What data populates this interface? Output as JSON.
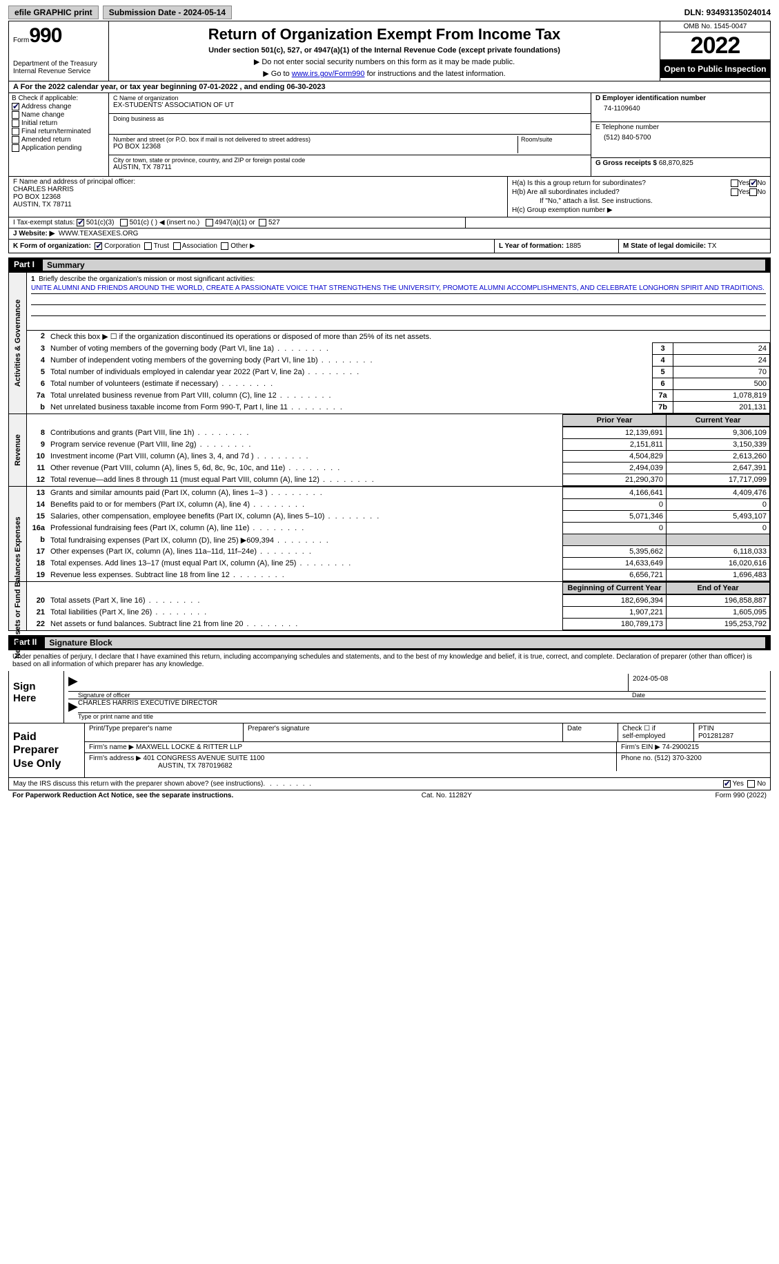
{
  "topbar": {
    "efile": "efile GRAPHIC print",
    "submission_label": "Submission Date - 2024-05-14",
    "dln": "DLN: 93493135024014"
  },
  "header": {
    "form_label": "Form",
    "form_number": "990",
    "dept": "Department of the Treasury\nInternal Revenue Service",
    "title": "Return of Organization Exempt From Income Tax",
    "subtitle": "Under section 501(c), 527, or 4947(a)(1) of the Internal Revenue Code (except private foundations)",
    "instr1": "▶ Do not enter social security numbers on this form as it may be made public.",
    "instr2_pre": "▶ Go to ",
    "instr2_link": "www.irs.gov/Form990",
    "instr2_post": " for instructions and the latest information.",
    "omb": "OMB No. 1545-0047",
    "year": "2022",
    "open": "Open to Public Inspection"
  },
  "period": {
    "label_a": "A For the 2022 calendar year, or tax year beginning ",
    "begin": "07-01-2022",
    "mid": "   , and ending ",
    "end": "06-30-2023"
  },
  "boxB": {
    "label": "B Check if applicable:",
    "items": [
      "Address change",
      "Name change",
      "Initial return",
      "Final return/terminated",
      "Amended return",
      "Application pending"
    ],
    "checked": [
      true,
      false,
      false,
      false,
      false,
      false
    ]
  },
  "boxC": {
    "name_label": "C Name of organization",
    "name": "EX-STUDENTS' ASSOCIATION OF UT",
    "dba_label": "Doing business as",
    "dba": "",
    "addr_label": "Number and street (or P.O. box if mail is not delivered to street address)",
    "room_label": "Room/suite",
    "addr": "PO BOX 12368",
    "city_label": "City or town, state or province, country, and ZIP or foreign postal code",
    "city": "AUSTIN, TX  78711"
  },
  "boxD": {
    "label": "D Employer identification number",
    "val": "74-1109640"
  },
  "boxE": {
    "label": "E Telephone number",
    "val": "(512) 840-5700"
  },
  "boxG": {
    "label": "G Gross receipts $",
    "val": "68,870,825"
  },
  "boxF": {
    "label": "F Name and address of principal officer:",
    "name": "CHARLES HARRIS",
    "addr": "PO BOX 12368",
    "city": "AUSTIN, TX  78711"
  },
  "boxH": {
    "ha": "H(a)  Is this a group return for subordinates?",
    "hb": "H(b)  Are all subordinates included?",
    "hb_note": "If \"No,\" attach a list. See instructions.",
    "hc": "H(c)  Group exemption number ▶",
    "yes": "Yes",
    "no": "No"
  },
  "boxI": {
    "label": "I   Tax-exempt status:",
    "opts": [
      "501(c)(3)",
      "501(c) (  ) ◀ (insert no.)",
      "4947(a)(1) or",
      "527"
    ]
  },
  "boxJ": {
    "label": "J   Website: ▶",
    "val": "WWW.TEXASEXES.ORG"
  },
  "boxK": {
    "label": "K Form of organization:",
    "opts": [
      "Corporation",
      "Trust",
      "Association",
      "Other ▶"
    ]
  },
  "boxL": {
    "label": "L Year of formation:",
    "val": "1885"
  },
  "boxM": {
    "label": "M State of legal domicile:",
    "val": "TX"
  },
  "part1": {
    "label": "Part I",
    "title": "Summary",
    "line1_label": "Briefly describe the organization's mission or most significant activities:",
    "line1_text": "UNITE ALUMNI AND FRIENDS AROUND THE WORLD, CREATE A PASSIONATE VOICE THAT STRENGTHENS THE UNIVERSITY, PROMOTE ALUMNI ACCOMPLISHMENTS, AND CELEBRATE LONGHORN SPIRIT AND TRADITIONS.",
    "line2": "Check this box ▶ ☐ if the organization discontinued its operations or disposed of more than 25% of its net assets.",
    "gov_rows": [
      {
        "n": "3",
        "t": "Number of voting members of the governing body (Part VI, line 1a)",
        "b": "3",
        "v": "24"
      },
      {
        "n": "4",
        "t": "Number of independent voting members of the governing body (Part VI, line 1b)",
        "b": "4",
        "v": "24"
      },
      {
        "n": "5",
        "t": "Total number of individuals employed in calendar year 2022 (Part V, line 2a)",
        "b": "5",
        "v": "70"
      },
      {
        "n": "6",
        "t": "Total number of volunteers (estimate if necessary)",
        "b": "6",
        "v": "500"
      },
      {
        "n": "7a",
        "t": "Total unrelated business revenue from Part VIII, column (C), line 12",
        "b": "7a",
        "v": "1,078,819"
      },
      {
        "n": "b",
        "t": "Net unrelated business taxable income from Form 990-T, Part I, line 11",
        "b": "7b",
        "v": "201,131"
      }
    ],
    "prior_hdr": "Prior Year",
    "curr_hdr": "Current Year",
    "rev_rows": [
      {
        "n": "8",
        "t": "Contributions and grants (Part VIII, line 1h)",
        "p": "12,139,691",
        "c": "9,306,109"
      },
      {
        "n": "9",
        "t": "Program service revenue (Part VIII, line 2g)",
        "p": "2,151,811",
        "c": "3,150,339"
      },
      {
        "n": "10",
        "t": "Investment income (Part VIII, column (A), lines 3, 4, and 7d )",
        "p": "4,504,829",
        "c": "2,613,260"
      },
      {
        "n": "11",
        "t": "Other revenue (Part VIII, column (A), lines 5, 6d, 8c, 9c, 10c, and 11e)",
        "p": "2,494,039",
        "c": "2,647,391"
      },
      {
        "n": "12",
        "t": "Total revenue—add lines 8 through 11 (must equal Part VIII, column (A), line 12)",
        "p": "21,290,370",
        "c": "17,717,099"
      }
    ],
    "exp_rows": [
      {
        "n": "13",
        "t": "Grants and similar amounts paid (Part IX, column (A), lines 1–3 )",
        "p": "4,166,641",
        "c": "4,409,476"
      },
      {
        "n": "14",
        "t": "Benefits paid to or for members (Part IX, column (A), line 4)",
        "p": "0",
        "c": "0"
      },
      {
        "n": "15",
        "t": "Salaries, other compensation, employee benefits (Part IX, column (A), lines 5–10)",
        "p": "5,071,346",
        "c": "5,493,107"
      },
      {
        "n": "16a",
        "t": "Professional fundraising fees (Part IX, column (A), line 11e)",
        "p": "0",
        "c": "0"
      },
      {
        "n": "b",
        "t": "Total fundraising expenses (Part IX, column (D), line 25) ▶609,394",
        "p": "",
        "c": "",
        "shade": true
      },
      {
        "n": "17",
        "t": "Other expenses (Part IX, column (A), lines 11a–11d, 11f–24e)",
        "p": "5,395,662",
        "c": "6,118,033"
      },
      {
        "n": "18",
        "t": "Total expenses. Add lines 13–17 (must equal Part IX, column (A), line 25)",
        "p": "14,633,649",
        "c": "16,020,616"
      },
      {
        "n": "19",
        "t": "Revenue less expenses. Subtract line 18 from line 12",
        "p": "6,656,721",
        "c": "1,696,483"
      }
    ],
    "bal_hdr_p": "Beginning of Current Year",
    "bal_hdr_c": "End of Year",
    "bal_rows": [
      {
        "n": "20",
        "t": "Total assets (Part X, line 16)",
        "p": "182,696,394",
        "c": "196,858,887"
      },
      {
        "n": "21",
        "t": "Total liabilities (Part X, line 26)",
        "p": "1,907,221",
        "c": "1,605,095"
      },
      {
        "n": "22",
        "t": "Net assets or fund balances. Subtract line 21 from line 20",
        "p": "180,789,173",
        "c": "195,253,792"
      }
    ]
  },
  "part2": {
    "label": "Part II",
    "title": "Signature Block",
    "decl": "Under penalties of perjury, I declare that I have examined this return, including accompanying schedules and statements, and to the best of my knowledge and belief, it is true, correct, and complete. Declaration of preparer (other than officer) is based on all information of which preparer has any knowledge.",
    "sign_here": "Sign Here",
    "sig_officer": "Signature of officer",
    "sig_date": "2024-05-08",
    "date_lbl": "Date",
    "name_title": "CHARLES HARRIS  EXECUTIVE DIRECTOR",
    "type_lbl": "Type or print name and title"
  },
  "prep": {
    "label": "Paid Preparer Use Only",
    "h1": "Print/Type preparer's name",
    "h2": "Preparer's signature",
    "h3": "Date",
    "h4_a": "Check ☐ if",
    "h4_b": "self-employed",
    "h5": "PTIN",
    "ptin": "P01281287",
    "firm_lbl": "Firm's name    ▶",
    "firm": "MAXWELL LOCKE & RITTER LLP",
    "ein_lbl": "Firm's EIN ▶",
    "ein": "74-2900215",
    "addr_lbl": "Firm's address ▶",
    "addr1": "401 CONGRESS AVENUE SUITE 1100",
    "addr2": "AUSTIN, TX  787019682",
    "phone_lbl": "Phone no.",
    "phone": "(512) 370-3200"
  },
  "discuss": {
    "text": "May the IRS discuss this return with the preparer shown above? (see instructions)",
    "yes": "Yes",
    "no": "No"
  },
  "footer": {
    "left": "For Paperwork Reduction Act Notice, see the separate instructions.",
    "mid": "Cat. No. 11282Y",
    "right": "Form 990 (2022)"
  },
  "vtabs": {
    "gov": "Activities & Governance",
    "rev": "Revenue",
    "exp": "Expenses",
    "bal": "Net Assets or Fund Balances"
  }
}
